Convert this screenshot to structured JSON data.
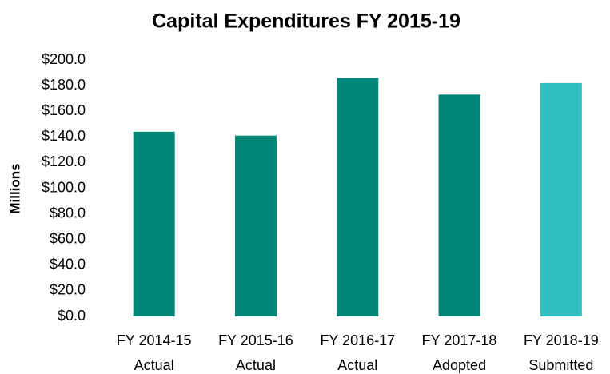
{
  "chart_data": {
    "type": "bar",
    "title": "Capital Expenditures FY 2015-19",
    "y_label": "Millions",
    "categories": [
      [
        "FY 2014-15",
        "Actual"
      ],
      [
        "FY 2015-16",
        "Actual"
      ],
      [
        "FY 2016-17",
        "Actual"
      ],
      [
        "FY 2017-18",
        "Adopted"
      ],
      [
        "FY 2018-19",
        "Submitted"
      ]
    ],
    "values": [
      144,
      141,
      186,
      173,
      182
    ],
    "colors": [
      "#008577",
      "#008577",
      "#008577",
      "#008577",
      "#33bfbf"
    ],
    "ylim": [
      0,
      200
    ],
    "yticks": [
      {
        "value": 0,
        "label": "$0.0"
      },
      {
        "value": 20,
        "label": "$20.0"
      },
      {
        "value": 40,
        "label": "$40.0"
      },
      {
        "value": 60,
        "label": "$60.0"
      },
      {
        "value": 80,
        "label": "$80.0"
      },
      {
        "value": 100,
        "label": "$100.0"
      },
      {
        "value": 120,
        "label": "$120.0"
      },
      {
        "value": 140,
        "label": "$140.0"
      },
      {
        "value": 160,
        "label": "$160.0"
      },
      {
        "value": 180,
        "label": "$180.0"
      },
      {
        "value": 200,
        "label": "$200.0"
      }
    ],
    "grid": false
  }
}
